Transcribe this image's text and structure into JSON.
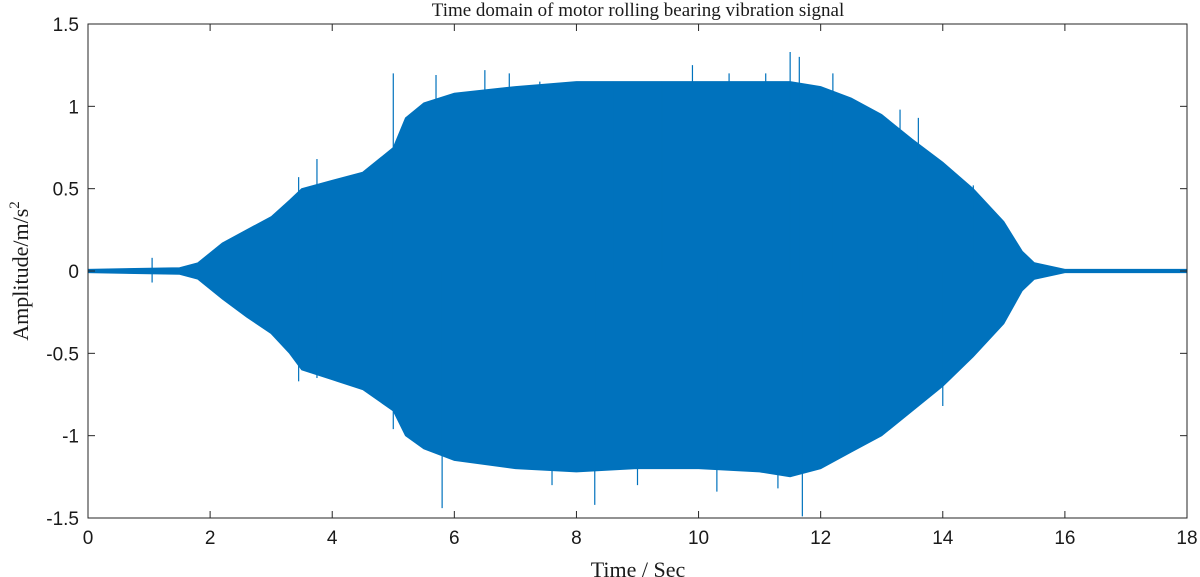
{
  "chart_data": {
    "type": "line",
    "title": "Time domain of motor rolling bearing vibration signal",
    "xlabel": "Time / Sec",
    "ylabel": "Amplitude/m/s",
    "ylabel_superscript": "2",
    "xlim": [
      0,
      18
    ],
    "ylim": [
      -1.5,
      1.5
    ],
    "xticks": [
      0,
      2,
      4,
      6,
      8,
      10,
      12,
      14,
      16,
      18
    ],
    "yticks": [
      1.5,
      1,
      0.5,
      0,
      -0.5,
      -1,
      -1.5
    ],
    "xtick_labels": [
      "0",
      "2",
      "4",
      "6",
      "8",
      "10",
      "12",
      "14",
      "16",
      "18"
    ],
    "ytick_labels": [
      "1.5",
      "1",
      "0.5",
      "0",
      "-0.5",
      "-1",
      "-1.5"
    ],
    "grid": false,
    "series": [
      {
        "color": "#0072bd",
        "envelope": {
          "x": [
            0,
            1.5,
            1.8,
            2.2,
            2.6,
            3.0,
            3.3,
            3.5,
            4.0,
            4.5,
            5.0,
            5.2,
            5.5,
            6.0,
            7.0,
            8.0,
            9.0,
            10.0,
            11.0,
            11.5,
            12.0,
            12.5,
            13.0,
            13.5,
            14.0,
            14.5,
            15.0,
            15.3,
            15.5,
            16.0,
            18.0
          ],
          "upper": [
            0.01,
            0.02,
            0.05,
            0.17,
            0.25,
            0.33,
            0.43,
            0.5,
            0.55,
            0.6,
            0.75,
            0.93,
            1.02,
            1.08,
            1.12,
            1.15,
            1.15,
            1.15,
            1.15,
            1.15,
            1.12,
            1.05,
            0.95,
            0.8,
            0.66,
            0.5,
            0.3,
            0.12,
            0.05,
            0.01,
            0.01
          ],
          "lower": [
            -0.01,
            -0.02,
            -0.05,
            -0.17,
            -0.28,
            -0.38,
            -0.5,
            -0.6,
            -0.66,
            -0.72,
            -0.85,
            -1.0,
            -1.08,
            -1.15,
            -1.2,
            -1.22,
            -1.2,
            -1.2,
            -1.22,
            -1.25,
            -1.2,
            -1.1,
            -1.0,
            -0.85,
            -0.7,
            -0.52,
            -0.32,
            -0.12,
            -0.05,
            -0.01,
            -0.01
          ]
        },
        "spikes": [
          {
            "x": 1.05,
            "y": 0.08
          },
          {
            "x": 1.05,
            "y": -0.07
          },
          {
            "x": 3.45,
            "y": 0.57
          },
          {
            "x": 3.45,
            "y": -0.67
          },
          {
            "x": 3.75,
            "y": 0.68
          },
          {
            "x": 3.75,
            "y": -0.65
          },
          {
            "x": 5.0,
            "y": 1.2
          },
          {
            "x": 5.0,
            "y": -0.96
          },
          {
            "x": 5.7,
            "y": 1.19
          },
          {
            "x": 5.8,
            "y": -1.44
          },
          {
            "x": 6.5,
            "y": 1.22
          },
          {
            "x": 6.9,
            "y": 1.2
          },
          {
            "x": 7.4,
            "y": 1.15
          },
          {
            "x": 7.6,
            "y": -1.3
          },
          {
            "x": 8.3,
            "y": -1.42
          },
          {
            "x": 8.6,
            "y": 1.15
          },
          {
            "x": 9.0,
            "y": -1.3
          },
          {
            "x": 9.4,
            "y": 1.15
          },
          {
            "x": 9.9,
            "y": 1.25
          },
          {
            "x": 10.3,
            "y": -1.34
          },
          {
            "x": 10.5,
            "y": 1.2
          },
          {
            "x": 11.1,
            "y": 1.2
          },
          {
            "x": 11.3,
            "y": -1.32
          },
          {
            "x": 11.5,
            "y": 1.33
          },
          {
            "x": 11.65,
            "y": 1.3
          },
          {
            "x": 11.7,
            "y": -1.49
          },
          {
            "x": 12.2,
            "y": 1.2
          },
          {
            "x": 12.3,
            "y": -1.1
          },
          {
            "x": 13.3,
            "y": 0.98
          },
          {
            "x": 13.6,
            "y": 0.93
          },
          {
            "x": 14.0,
            "y": -0.82
          },
          {
            "x": 14.5,
            "y": 0.52
          }
        ]
      }
    ]
  }
}
